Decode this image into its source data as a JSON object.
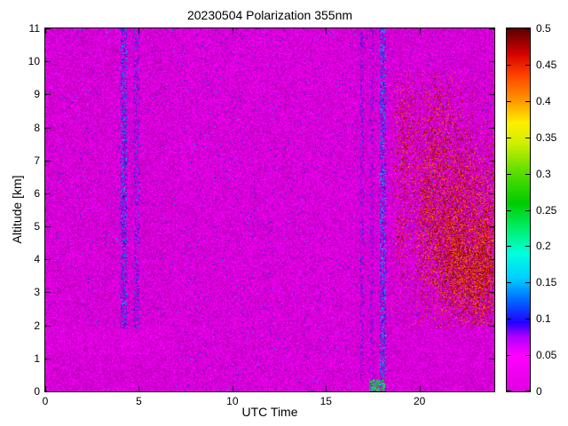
{
  "chart_data": {
    "type": "heatmap",
    "title": "20230504 Polarization 355nm",
    "xlabel": "UTC Time",
    "ylabel": "Altitude [km]",
    "x_range": [
      0,
      24
    ],
    "y_range": [
      0,
      11
    ],
    "x_ticks": [
      0,
      5,
      10,
      15,
      20
    ],
    "x_tick_labels": [
      "0",
      "5",
      "10",
      "15",
      "20"
    ],
    "y_ticks": [
      0,
      1,
      2,
      3,
      4,
      5,
      6,
      7,
      8,
      9,
      10,
      11
    ],
    "y_tick_labels": [
      "0",
      "1",
      "2",
      "3",
      "4",
      "5",
      "6",
      "7",
      "8",
      "9",
      "10",
      "11"
    ],
    "colorbar": {
      "min": 0,
      "max": 0.5,
      "ticks": [
        0,
        0.05,
        0.1,
        0.15,
        0.2,
        0.25,
        0.3,
        0.35,
        0.4,
        0.45,
        0.5
      ],
      "tick_labels": [
        "0",
        "0.05",
        "0.1",
        "0.15",
        "0.2",
        "0.25",
        "0.3",
        "0.35",
        "0.4",
        "0.45",
        "0.5"
      ]
    },
    "colormap": [
      [
        0.0,
        "#e000e0"
      ],
      [
        0.05,
        "#ff00ff"
      ],
      [
        0.075,
        "#b000ff"
      ],
      [
        0.095,
        "#2200ff"
      ],
      [
        0.125,
        "#0066ff"
      ],
      [
        0.155,
        "#00ccff"
      ],
      [
        0.19,
        "#00ffdd"
      ],
      [
        0.225,
        "#00ee66"
      ],
      [
        0.26,
        "#00cc00"
      ],
      [
        0.3,
        "#55dd00"
      ],
      [
        0.34,
        "#ccee00"
      ],
      [
        0.37,
        "#ffee00"
      ],
      [
        0.4,
        "#ff9900"
      ],
      [
        0.435,
        "#ff4400"
      ],
      [
        0.465,
        "#d40000"
      ],
      [
        0.5,
        "#5a0000"
      ]
    ],
    "render": {
      "seed": 7,
      "jitter": [
        0.72,
        1.08
      ],
      "background": {
        "vmax": 0.045
      },
      "blue_dot_prob": 0.012,
      "mid_region": {
        "u0": 6.9,
        "u1": 16.6,
        "vmax": 0.055,
        "exp": 0.9,
        "dot_p": 0.02
      },
      "smooth_low_alt": {
        "a_max": 2.0,
        "v0": 0.008,
        "v1": 0.038
      },
      "pink_band": {
        "u1": 6.9,
        "a0": 1.1,
        "v0": 0.018,
        "v1": 0.048
      },
      "stripes": [
        {
          "u0": 4.05,
          "u1": 4.35,
          "a0": 1.9,
          "a1": 11,
          "p": 0.5,
          "v0": 0.06,
          "v1": 0.16
        },
        {
          "u0": 4.75,
          "u1": 5.05,
          "a0": 1.9,
          "a1": 11,
          "p": 0.3,
          "v0": 0.05,
          "v1": 0.14
        },
        {
          "u0": 16.85,
          "u1": 17.05,
          "a0": 0.3,
          "a1": 11,
          "p": 0.3,
          "v0": 0.05,
          "v1": 0.13
        },
        {
          "u0": 17.35,
          "u1": 17.55,
          "a0": 0.3,
          "a1": 11,
          "p": 0.25,
          "v0": 0.05,
          "v1": 0.12
        },
        {
          "u0": 17.9,
          "u1": 18.2,
          "a0": 0.3,
          "a1": 11,
          "p": 0.5,
          "v0": 0.06,
          "v1": 0.17
        }
      ],
      "bottom_spot": {
        "u0": 17.3,
        "u1": 18.15,
        "a0": 0,
        "a1": 0.35,
        "p": 0.7,
        "v0": 0.12,
        "v1": 0.32
      },
      "cloud_region": {
        "u0": 18.45,
        "a0": 1.9,
        "a1": 9.7,
        "sparse_p": 0.018
      },
      "cloud_blobs": [
        {
          "u": 19.2,
          "a": 7.6,
          "ru": 0.45,
          "ra": 1.6,
          "d": 0.28
        },
        {
          "u": 19.0,
          "a": 4.8,
          "ru": 0.35,
          "ra": 1.0,
          "d": 0.22
        },
        {
          "u": 20.4,
          "a": 5.6,
          "ru": 0.7,
          "ra": 2.3,
          "d": 0.38
        },
        {
          "u": 21.1,
          "a": 8.0,
          "ru": 0.7,
          "ra": 1.4,
          "d": 0.22
        },
        {
          "u": 21.6,
          "a": 4.3,
          "ru": 0.9,
          "ra": 1.8,
          "d": 0.5
        },
        {
          "u": 22.3,
          "a": 6.3,
          "ru": 0.9,
          "ra": 1.8,
          "d": 0.3
        },
        {
          "u": 22.9,
          "a": 3.4,
          "ru": 1.1,
          "ra": 1.3,
          "d": 0.55
        },
        {
          "u": 23.6,
          "a": 4.8,
          "ru": 0.7,
          "ra": 2.0,
          "d": 0.45
        }
      ],
      "cloud_value": [
        0.4,
        0.5
      ]
    }
  }
}
